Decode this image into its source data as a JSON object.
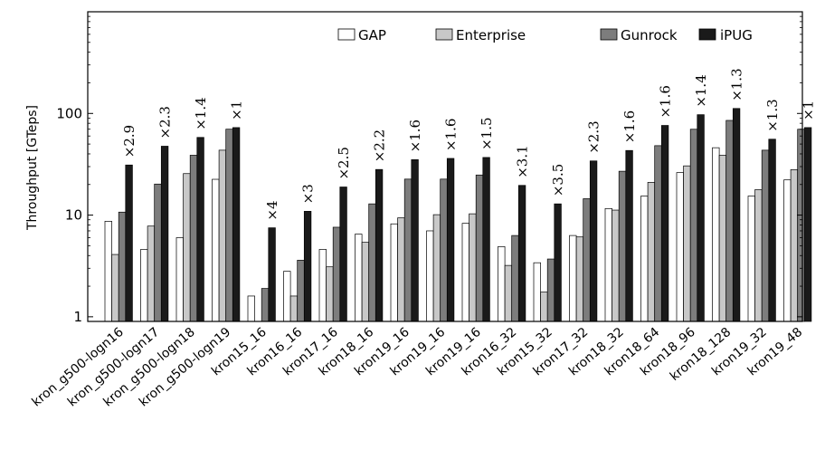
{
  "chart_data": {
    "type": "bar",
    "ylabel": "Throughput [GTeps]",
    "yscale": "log",
    "ylim": [
      0.9,
      1000
    ],
    "yticks": [
      {
        "value": 1,
        "label": "1"
      },
      {
        "value": 10,
        "label": "10"
      },
      {
        "value": 100,
        "label": "100"
      }
    ],
    "legend_position": "top-right",
    "categories": [
      "kron_g500-logn16",
      "kron_g500-logn17",
      "kron_g500-logn18",
      "kron_g500-logn19",
      "kron15_16",
      "kron16_16",
      "kron17_16",
      "kron18_16",
      "kron19_16",
      "kron19_16",
      "kron19_16",
      "kron16_32",
      "kron15_32",
      "kron17_32",
      "kron18_32",
      "kron18_64",
      "kron18_96",
      "kron18_128",
      "kron19_32",
      "kron19_48"
    ],
    "series": [
      {
        "name": "GAP",
        "color": "#ffffff",
        "values": [
          8.7,
          4.6,
          6.0,
          22.5,
          1.6,
          2.8,
          4.6,
          6.5,
          8.2,
          7.0,
          8.3,
          4.9,
          3.4,
          6.3,
          11.6,
          15.4,
          26.2,
          46.0,
          15.4,
          22.2
        ]
      },
      {
        "name": "Enterprise",
        "color": "#c8c8c8",
        "values": [
          4.1,
          7.8,
          25.6,
          43.5,
          null,
          1.6,
          3.1,
          5.4,
          9.4,
          10.1,
          10.3,
          3.2,
          1.75,
          6.1,
          11.2,
          21.0,
          30.5,
          38.8,
          17.8,
          28.0
        ]
      },
      {
        "name": "Gunrock",
        "color": "#7d7d7d",
        "values": [
          10.7,
          20.2,
          38.8,
          70.0,
          1.9,
          3.6,
          7.6,
          12.9,
          22.6,
          22.6,
          24.8,
          6.3,
          3.7,
          14.5,
          27.0,
          48.2,
          69.9,
          85.4,
          43.5,
          69.9
        ]
      },
      {
        "name": "iPUG",
        "color": "#1a1a1a",
        "values": [
          31.1,
          47.6,
          58.1,
          72.6,
          7.5,
          10.9,
          18.9,
          28.1,
          35.1,
          36.1,
          36.9,
          19.6,
          12.9,
          34.1,
          43.2,
          76.2,
          97.2,
          111.9,
          55.8,
          72.6
        ]
      }
    ],
    "annotations": [
      "×2.9",
      "×2.3",
      "×1.4",
      "×1",
      "×4",
      "×3",
      "×2.5",
      "×2.2",
      "×1.6",
      "×1.6",
      "×1.5",
      "×3.1",
      "×3.5",
      "×2.3",
      "×1.6",
      "×1.6",
      "×1.4",
      "×1.3",
      "×1.3",
      "×1"
    ]
  }
}
